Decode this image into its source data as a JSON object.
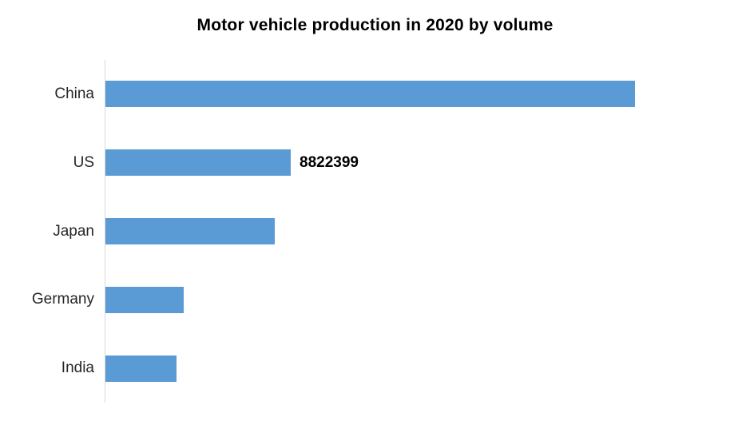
{
  "chart_data": {
    "type": "bar",
    "orientation": "horizontal",
    "title": "Motor vehicle production in 2020 by volume",
    "categories": [
      "China",
      "US",
      "Japan",
      "Germany",
      "India"
    ],
    "values": [
      25225242,
      8822399,
      8067557,
      3742454,
      3394446
    ],
    "data_labels": [
      null,
      "8822399",
      null,
      null,
      null
    ],
    "xlabel": "",
    "ylabel": "",
    "xlim": [
      0,
      30000000
    ],
    "grid": false,
    "legend": false,
    "bar_color": "#5B9BD5",
    "axis_line_color": "#D9D9D9",
    "title_color": "#000000",
    "label_color": "#262626"
  }
}
